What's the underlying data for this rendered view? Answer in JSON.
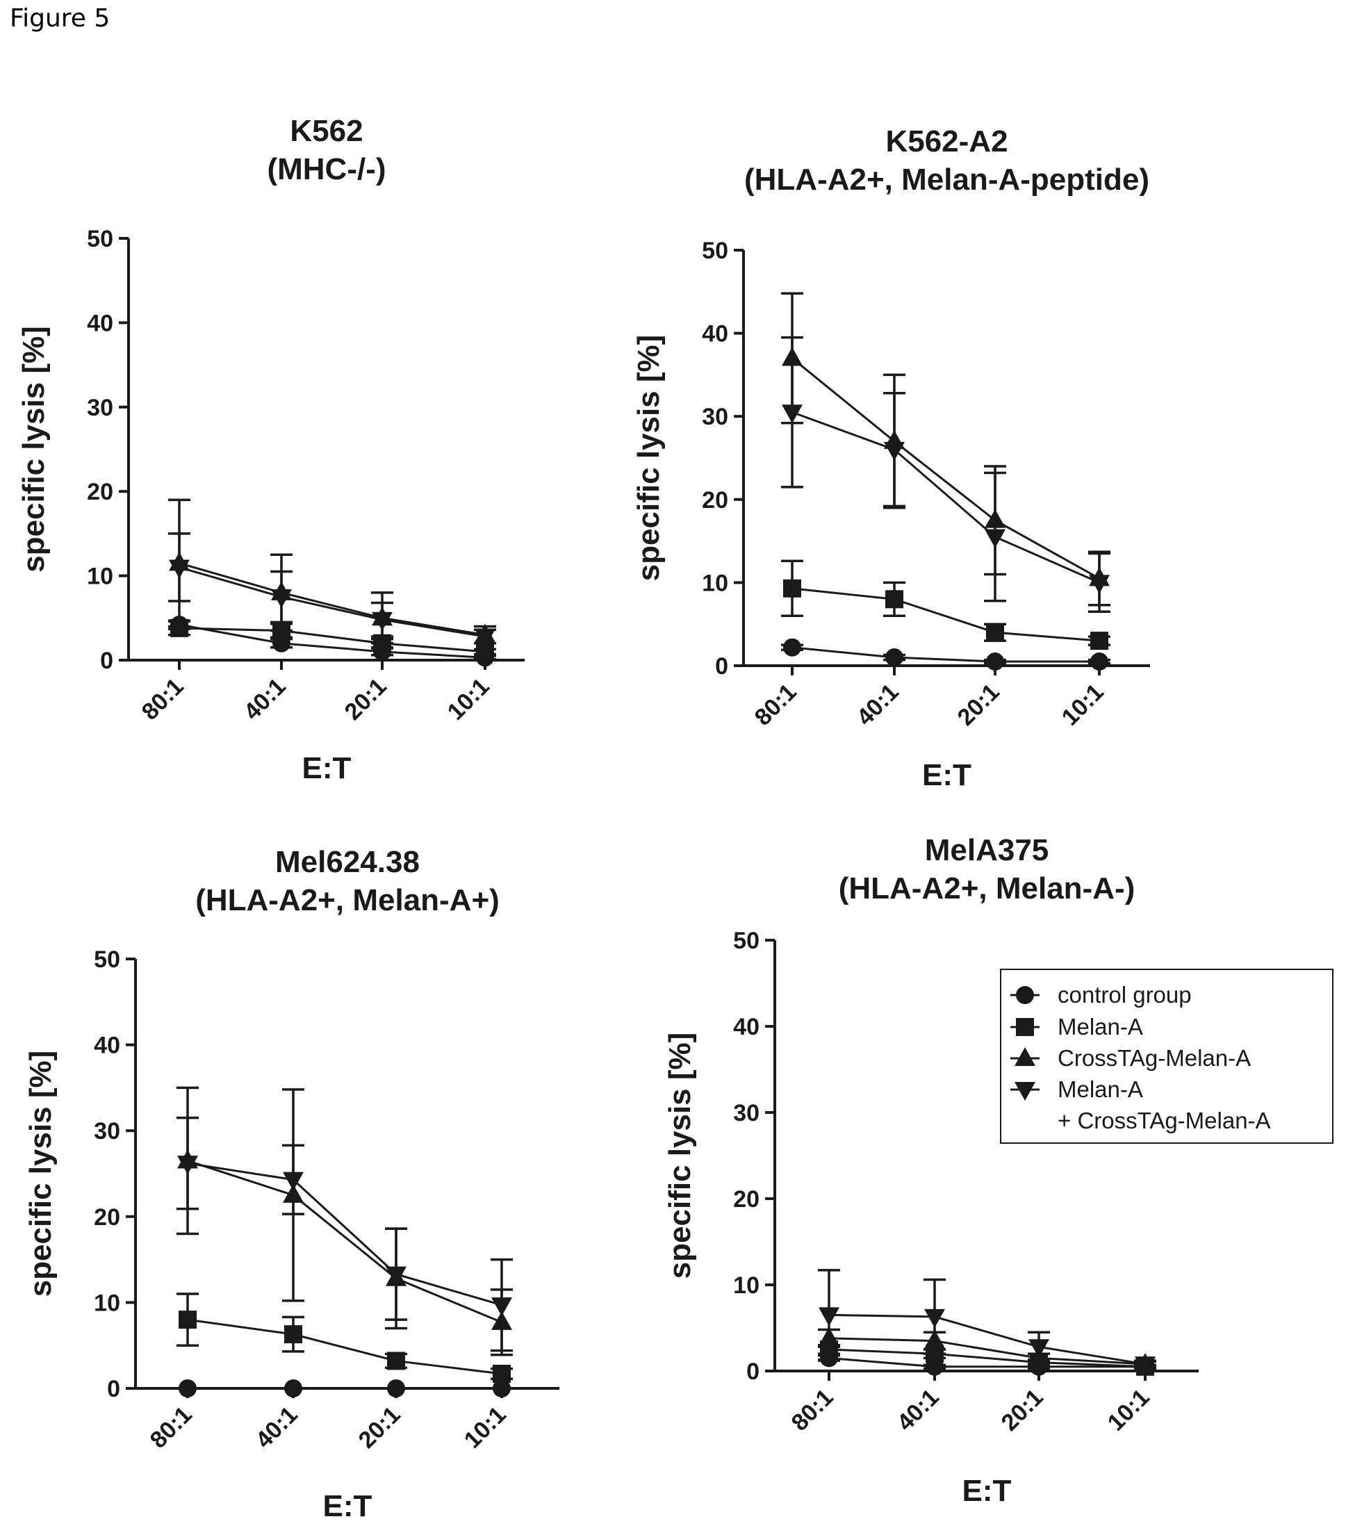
{
  "figure_label": "Figure 5",
  "legend": {
    "items": [
      {
        "label": "control group",
        "marker": "circle"
      },
      {
        "label": "Melan-A",
        "marker": "square"
      },
      {
        "label": "CrossTAg-Melan-A",
        "marker": "triangle-up"
      },
      {
        "label": "Melan-A",
        "label2": "+ CrossTAg-Melan-A",
        "marker": "triangle-down"
      }
    ]
  },
  "chart_data": [
    {
      "type": "line",
      "title": "K562",
      "subtitle": "(MHC-/-)",
      "xlabel": "E:T",
      "ylabel": "specific lysis [%]",
      "categories": [
        "80:1",
        "40:1",
        "20:1",
        "10:1"
      ],
      "ylim": [
        0,
        50
      ],
      "yticks": [
        "0",
        "10",
        "20",
        "30",
        "40",
        "50"
      ],
      "series": [
        {
          "name": "control group",
          "marker": "circle",
          "values": [
            4.2,
            2.0,
            1.0,
            0.3
          ],
          "err": [
            0.5,
            0.5,
            0.4,
            0.2
          ]
        },
        {
          "name": "Melan-A",
          "marker": "square",
          "values": [
            3.8,
            3.5,
            2.0,
            1.0
          ],
          "err": [
            0.8,
            0.8,
            0.5,
            0.3
          ]
        },
        {
          "name": "CrossTAg-Melan-A",
          "marker": "triangle-up",
          "values": [
            11.5,
            8.0,
            5.0,
            3.0
          ],
          "err": [
            7.5,
            4.5,
            3.0,
            1.0
          ]
        },
        {
          "name": "Melan-A + CrossTAg-Melan-A",
          "marker": "triangle-down",
          "values": [
            11.0,
            7.5,
            4.8,
            2.8
          ],
          "err": [
            4.0,
            3.0,
            2.0,
            0.8
          ]
        }
      ]
    },
    {
      "type": "line",
      "title": "K562-A2",
      "subtitle": "(HLA-A2+, Melan-A-peptide)",
      "xlabel": "E:T",
      "ylabel": "specific lysis [%]",
      "categories": [
        "80:1",
        "40:1",
        "20:1",
        "10:1"
      ],
      "ylim": [
        0,
        50
      ],
      "yticks": [
        "0",
        "10",
        "20",
        "30",
        "40",
        "50"
      ],
      "series": [
        {
          "name": "control group",
          "marker": "circle",
          "values": [
            2.2,
            1.0,
            0.5,
            0.5
          ],
          "err": [
            0.3,
            0.3,
            0.2,
            0.2
          ]
        },
        {
          "name": "Melan-A",
          "marker": "square",
          "values": [
            9.3,
            8.0,
            4.0,
            3.0
          ],
          "err": [
            3.3,
            2.0,
            1.0,
            0.5
          ]
        },
        {
          "name": "CrossTAg-Melan-A",
          "marker": "triangle-up",
          "values": [
            37.0,
            27.0,
            17.5,
            10.5
          ],
          "err": [
            7.8,
            8.0,
            6.5,
            3.2
          ]
        },
        {
          "name": "Melan-A + CrossTAg-Melan-A",
          "marker": "triangle-down",
          "values": [
            30.5,
            26.0,
            15.5,
            10.0
          ],
          "err": [
            9.0,
            6.8,
            7.7,
            3.5
          ]
        }
      ]
    },
    {
      "type": "line",
      "title": "Mel624.38",
      "subtitle": "(HLA-A2+, Melan-A+)",
      "xlabel": "E:T",
      "ylabel": "specific lysis [%]",
      "categories": [
        "80:1",
        "40:1",
        "20:1",
        "10:1"
      ],
      "ylim": [
        0,
        50
      ],
      "yticks": [
        "0",
        "10",
        "20",
        "30",
        "40",
        "50"
      ],
      "series": [
        {
          "name": "control group",
          "marker": "circle",
          "values": [
            0.0,
            0.0,
            0.0,
            0.0
          ],
          "err": [
            0,
            0,
            0,
            0
          ]
        },
        {
          "name": "Melan-A",
          "marker": "square",
          "values": [
            8.0,
            6.3,
            3.2,
            1.7
          ],
          "err": [
            3.0,
            2.0,
            0.8,
            0.6
          ]
        },
        {
          "name": "CrossTAg-Melan-A",
          "marker": "triangle-up",
          "values": [
            26.5,
            22.5,
            12.8,
            7.7
          ],
          "err": [
            8.5,
            12.3,
            5.8,
            3.8
          ]
        },
        {
          "name": "Melan-A + CrossTAg-Melan-A",
          "marker": "triangle-down",
          "values": [
            26.2,
            24.3,
            13.3,
            9.7
          ],
          "err": [
            5.3,
            4.0,
            5.3,
            5.3
          ]
        }
      ]
    },
    {
      "type": "line",
      "title": "MelA375",
      "subtitle": "(HLA-A2+, Melan-A-)",
      "xlabel": "E:T",
      "ylabel": "specific lysis [%]",
      "categories": [
        "80:1",
        "40:1",
        "20:1",
        "10:1"
      ],
      "ylim": [
        0,
        50
      ],
      "yticks": [
        "0",
        "10",
        "20",
        "30",
        "40",
        "50"
      ],
      "series": [
        {
          "name": "control group",
          "marker": "circle",
          "values": [
            1.5,
            0.5,
            0.5,
            0.5
          ],
          "err": [
            0.3,
            0.2,
            0.2,
            0.2
          ]
        },
        {
          "name": "Melan-A",
          "marker": "square",
          "values": [
            2.5,
            2.0,
            1.0,
            0.5
          ],
          "err": [
            0.5,
            0.5,
            0.3,
            0.2
          ]
        },
        {
          "name": "CrossTAg-Melan-A",
          "marker": "triangle-up",
          "values": [
            3.8,
            3.5,
            1.5,
            0.8
          ],
          "err": [
            1.0,
            1.0,
            0.5,
            0.3
          ]
        },
        {
          "name": "Melan-A + CrossTAg-Melan-A",
          "marker": "triangle-down",
          "values": [
            6.5,
            6.3,
            2.8,
            0.8
          ],
          "err": [
            5.2,
            4.3,
            1.7,
            0.4
          ]
        }
      ]
    }
  ]
}
